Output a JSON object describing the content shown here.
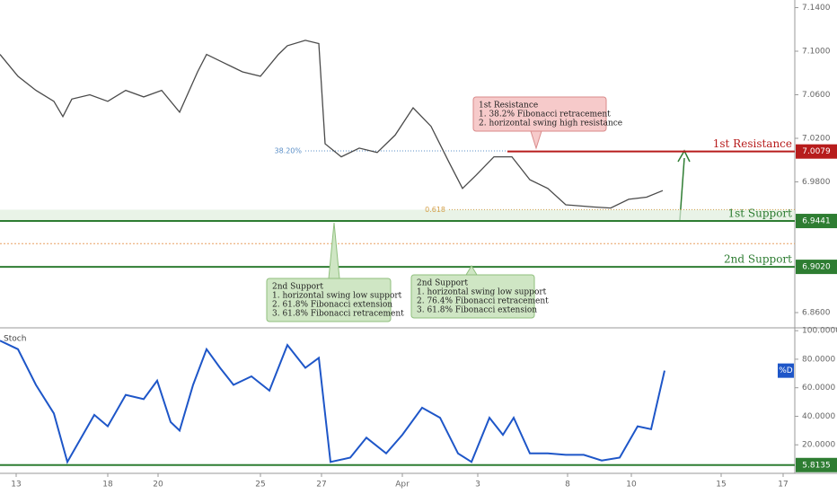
{
  "chart_data": [
    {
      "type": "line",
      "xlim": [
        0,
        88.5
      ],
      "ylim": [
        6.846,
        7.147
      ],
      "yticks": [
        {
          "value": 7.14,
          "label": "7.1400"
        },
        {
          "value": 7.1,
          "label": "7.1000"
        },
        {
          "value": 7.06,
          "label": "7.0600"
        },
        {
          "value": 7.02,
          "label": "7.0200"
        },
        {
          "value": 6.98,
          "label": "6.9800"
        },
        {
          "value": 6.86,
          "label": "6.8600"
        }
      ],
      "series": [
        {
          "color": "#4a4a4a",
          "x": [
            0,
            2,
            4,
            6,
            7,
            8,
            10,
            12,
            14,
            16,
            18,
            20,
            22,
            23,
            25,
            27,
            29,
            31,
            32,
            34,
            35.5,
            36.2,
            38,
            40,
            42,
            44,
            46,
            48,
            50,
            51.5,
            53,
            55,
            57,
            59,
            61,
            63,
            66,
            68,
            70,
            72,
            73.8
          ],
          "values": [
            7.097,
            7.077,
            7.064,
            7.054,
            7.04,
            7.056,
            7.06,
            7.054,
            7.064,
            7.058,
            7.064,
            7.044,
            7.081,
            7.097,
            7.089,
            7.081,
            7.077,
            7.097,
            7.105,
            7.11,
            7.107,
            7.015,
            7.003,
            7.011,
            7.007,
            7.023,
            7.048,
            7.031,
            6.998,
            6.974,
            6.986,
            7.003,
            7.003,
            6.982,
            6.974,
            6.959,
            6.957,
            6.956,
            6.964,
            6.966,
            6.972
          ]
        }
      ],
      "levels": [
        {
          "name": "1st Resistance",
          "value": 7.0079,
          "value_label": "7.0079",
          "color": "#b71c1c"
        },
        {
          "name": "1st Support",
          "value": 6.9441,
          "value_label": "6.9441",
          "color": "#2e7d32"
        },
        {
          "name": "2nd Support",
          "value": 6.902,
          "value_label": "6.9020",
          "color": "#2e7d32"
        }
      ],
      "fib_levels": [
        {
          "label": "38.20%",
          "value": 7.0085,
          "color": "#5b8fc7"
        },
        {
          "label": "0.618",
          "value": 6.9545,
          "color": "#d4a04a"
        }
      ],
      "dotted_levels": [
        6.9233
      ],
      "annotations": [
        {
          "lines": [
            "1st Resistance",
            "1. 38.2% Fibonacci retracement",
            "2. horizontal swing high resistance"
          ],
          "color": "#f6caca",
          "border": "#d98a8a"
        },
        {
          "lines": [
            "2nd Support",
            "1. horizontal swing low support",
            "2. 61.8% Fibonacci extension",
            "3. 61.8% Fibonacci retracement"
          ],
          "color": "#cfe6c4",
          "border": "#8fbf7d"
        },
        {
          "lines": [
            "2nd Support",
            "1. horizontal swing low support",
            "2. 76.4% Fibonacci retracement",
            "3. 61.8% Fibonacci extension"
          ],
          "color": "#cfe6c4",
          "border": "#8fbf7d"
        }
      ]
    },
    {
      "type": "line",
      "title": "Stoch",
      "xlim": [
        0,
        88.5
      ],
      "ylim": [
        0,
        102
      ],
      "yticks": [
        {
          "value": 100,
          "label": "100.0000"
        },
        {
          "value": 80,
          "label": "80.0000"
        },
        {
          "value": 60,
          "label": "60.0000"
        },
        {
          "value": 40,
          "label": "40.0000"
        },
        {
          "value": 20,
          "label": "20.0000"
        }
      ],
      "xticks": [
        {
          "value": 1.8,
          "label": "13"
        },
        {
          "value": 12,
          "label": "18"
        },
        {
          "value": 17.6,
          "label": "20"
        },
        {
          "value": 29,
          "label": "25"
        },
        {
          "value": 35.8,
          "label": "27"
        },
        {
          "value": 44.8,
          "label": "Apr"
        },
        {
          "value": 53.2,
          "label": "3"
        },
        {
          "value": 63.2,
          "label": "8"
        },
        {
          "value": 70.3,
          "label": "10"
        },
        {
          "value": 80.3,
          "label": "15"
        },
        {
          "value": 87.2,
          "label": "17"
        }
      ],
      "series": [
        {
          "name": "%D",
          "color": "#1e56c8",
          "x": [
            0,
            2,
            4,
            6,
            7.5,
            9.5,
            10.5,
            12,
            14,
            16,
            17.5,
            19,
            20,
            21.5,
            23,
            24.5,
            26,
            28,
            30,
            32,
            34,
            35.5,
            36.8,
            39,
            40.8,
            43,
            44.8,
            47,
            49,
            51,
            52.5,
            54.5,
            56,
            57.2,
            59,
            61,
            63,
            65,
            67,
            69,
            71,
            72.5,
            74
          ],
          "values": [
            93,
            87,
            62,
            42,
            8,
            30,
            41,
            33,
            55,
            52,
            65,
            36,
            30,
            62,
            87,
            74,
            62,
            68,
            58,
            90,
            74,
            81,
            8,
            11,
            25,
            14,
            27,
            46,
            39,
            14,
            8,
            39,
            27,
            39,
            14,
            14,
            13,
            13,
            9,
            11,
            33,
            31,
            72
          ]
        }
      ],
      "levels": [
        {
          "value": 5.8135,
          "value_label": "5.8135",
          "color": "#2e7d32"
        }
      ]
    }
  ]
}
